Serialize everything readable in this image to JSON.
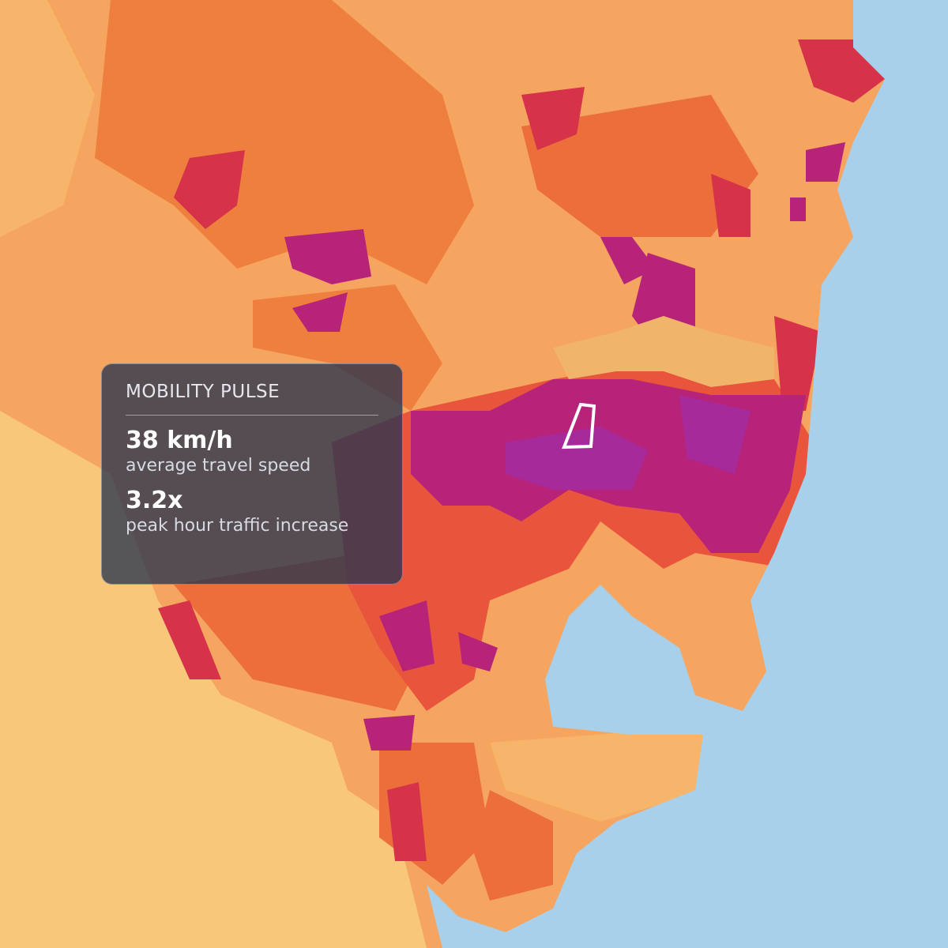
{
  "panel": {
    "title": "MOBILITY PULSE",
    "stats": [
      {
        "value": "38 km/h",
        "label": "average travel speed"
      },
      {
        "value": "3.2x",
        "label": "peak hour traffic increase"
      }
    ]
  }
}
